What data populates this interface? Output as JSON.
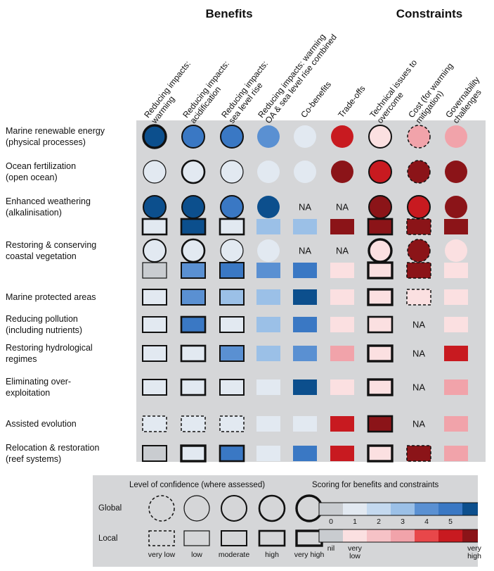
{
  "groups": {
    "benefits": "Benefits",
    "constraints": "Constraints"
  },
  "columns": [
    {
      "label": "Reducing impacts:\nwarming",
      "palette": "blue"
    },
    {
      "label": "Reducing impacts:\nacidification",
      "palette": "blue"
    },
    {
      "label": "Reducing impacts:\nsea level rise",
      "palette": "blue"
    },
    {
      "label": "Reducing impacts: warming\nOA & sea level rise combined",
      "palette": "blue"
    },
    {
      "label": "Co-benefits",
      "palette": "blue"
    },
    {
      "label": "Trade-offs",
      "palette": "red"
    },
    {
      "label": "Technical issues to\novercome",
      "palette": "red"
    },
    {
      "label": "Cost (for warming\nmitigation)",
      "palette": "red"
    },
    {
      "label": "Governability\nchallenges",
      "palette": "red"
    }
  ],
  "colors": {
    "blue": [
      "#c9ccd0",
      "#e2e9f1",
      "#c4d9ef",
      "#9bc0e7",
      "#5a90d2",
      "#3a78c4",
      "#0c4f8d"
    ],
    "red": [
      "#c9ccd0",
      "#fbe0e1",
      "#f6c2c6",
      "#f1a3aa",
      "#e8474a",
      "#c81a20",
      "#8b1418"
    ],
    "background": "#d5d6d8"
  },
  "legend": {
    "confidence_title": "Level of confidence (where assessed)",
    "scoring_title": "Scoring for benefits and constraints",
    "global_label": "Global",
    "local_label": "Local",
    "confidence_levels": [
      "very low",
      "low",
      "moderate",
      "high",
      "very high"
    ],
    "scale_numbers": [
      "0",
      "1",
      "2",
      "3",
      "4",
      "5"
    ],
    "scale_words": {
      "nil": "nil",
      "very_low": "very\nlow",
      "very_high": "very\nhigh"
    }
  },
  "chart_data": {
    "type": "table",
    "title": "",
    "groups": [
      {
        "name": "Benefits",
        "columns": [
          0,
          1,
          2,
          3,
          4
        ]
      },
      {
        "name": "Constraints",
        "columns": [
          5,
          6,
          7,
          8
        ]
      }
    ],
    "legend": {
      "score_range": [
        0,
        5
      ],
      "confidence_levels": [
        "very low",
        "low",
        "moderate",
        "high",
        "very high"
      ]
    },
    "rows": [
      {
        "label": "Marine renewable energy\n(physical processes)",
        "lines": [
          {
            "scope": "global",
            "cells": [
              {
                "score": 5,
                "conf": "very high"
              },
              {
                "score": 4,
                "conf": "moderate"
              },
              {
                "score": 4,
                "conf": "moderate"
              },
              {
                "score": 3
              },
              {
                "score": 1
              },
              {
                "score": 3.5
              },
              {
                "score": 1,
                "conf": "moderate"
              },
              {
                "score": 2,
                "conf": "very low"
              },
              {
                "score": 2
              }
            ]
          }
        ]
      },
      {
        "label": "Ocean fertilization\n(open ocean)",
        "lines": [
          {
            "scope": "global",
            "cells": [
              {
                "score": 1,
                "conf": "low"
              },
              {
                "score": 1,
                "conf": "high"
              },
              {
                "score": 1,
                "conf": "low"
              },
              {
                "score": 1
              },
              {
                "score": 1
              },
              {
                "score": 4.5
              },
              {
                "score": 3.5,
                "conf": "moderate"
              },
              {
                "score": 5,
                "conf": "very low"
              },
              {
                "score": 5
              }
            ]
          }
        ]
      },
      {
        "label": "Enhanced weathering\n(alkalinisation)",
        "lines": [
          {
            "scope": "global",
            "cells": [
              {
                "score": 5,
                "conf": "moderate"
              },
              {
                "score": 5,
                "conf": "moderate"
              },
              {
                "score": 4,
                "conf": "moderate"
              },
              {
                "score": 5
              },
              {
                "na": true
              },
              {
                "na": true
              },
              {
                "score": 4.5,
                "conf": "moderate"
              },
              {
                "score": 3.5,
                "conf": "moderate"
              },
              {
                "score": 5
              }
            ]
          },
          {
            "scope": "local",
            "cells": [
              {
                "score": 1,
                "conf": "high"
              },
              {
                "score": 5,
                "conf": "high"
              },
              {
                "score": 1,
                "conf": "high"
              },
              {
                "score": 2
              },
              {
                "score": 2
              },
              {
                "score": 4.5
              },
              {
                "score": 4.5,
                "conf": "high"
              },
              {
                "score": 4.5,
                "conf": "very low"
              },
              {
                "score": 5
              }
            ]
          }
        ]
      },
      {
        "label": "Restoring & conserving\ncoastal vegetation",
        "lines": [
          {
            "scope": "global",
            "cells": [
              {
                "score": 1,
                "conf": "moderate"
              },
              {
                "score": 1,
                "conf": "high"
              },
              {
                "score": 1,
                "conf": "low"
              },
              {
                "score": 1
              },
              {
                "na": true
              },
              {
                "na": true
              },
              {
                "score": 1,
                "conf": "very high"
              },
              {
                "score": 5,
                "conf": "very low"
              },
              {
                "score": 1
              }
            ]
          },
          {
            "scope": "local",
            "cells": [
              {
                "score": 0,
                "conf": "low"
              },
              {
                "score": 3,
                "conf": "moderate"
              },
              {
                "score": 4,
                "conf": "moderate"
              },
              {
                "score": 3
              },
              {
                "score": 4
              },
              {
                "score": 1
              },
              {
                "score": 1,
                "conf": "very high"
              },
              {
                "score": 5,
                "conf": "very low"
              },
              {
                "score": 1
              }
            ]
          }
        ]
      },
      {
        "label": "Marine protected areas",
        "lines": [
          {
            "scope": "local",
            "cells": [
              {
                "score": 1,
                "conf": "moderate"
              },
              {
                "score": 3,
                "conf": "moderate"
              },
              {
                "score": 2,
                "conf": "moderate"
              },
              {
                "score": 2
              },
              {
                "score": 5
              },
              {
                "score": 1
              },
              {
                "score": 1,
                "conf": "very high"
              },
              {
                "score": 1,
                "conf": "very low"
              },
              {
                "score": 1
              }
            ]
          }
        ]
      },
      {
        "label": "Reducing pollution\n(including nutrients)",
        "lines": [
          {
            "scope": "local",
            "cells": [
              {
                "score": 1,
                "conf": "moderate"
              },
              {
                "score": 4,
                "conf": "high"
              },
              {
                "score": 1,
                "conf": "moderate"
              },
              {
                "score": 2
              },
              {
                "score": 4
              },
              {
                "score": 1
              },
              {
                "score": 1,
                "conf": "high"
              },
              {
                "na": true
              },
              {
                "score": 1
              }
            ]
          }
        ]
      },
      {
        "label": "Restoring hydrological\nregimes",
        "lines": [
          {
            "scope": "local",
            "cells": [
              {
                "score": 1,
                "conf": "moderate"
              },
              {
                "score": 1,
                "conf": "high"
              },
              {
                "score": 3,
                "conf": "moderate"
              },
              {
                "score": 2
              },
              {
                "score": 3
              },
              {
                "score": 2
              },
              {
                "score": 1,
                "conf": "very high"
              },
              {
                "na": true
              },
              {
                "score": 4
              }
            ]
          }
        ]
      },
      {
        "label": "Eliminating over-\nexploitation",
        "lines": [
          {
            "scope": "local",
            "cells": [
              {
                "score": 1,
                "conf": "moderate"
              },
              {
                "score": 1,
                "conf": "high"
              },
              {
                "score": 1,
                "conf": "moderate"
              },
              {
                "score": 1
              },
              {
                "score": 5
              },
              {
                "score": 1
              },
              {
                "score": 1,
                "conf": "very high"
              },
              {
                "na": true
              },
              {
                "score": 2
              }
            ]
          }
        ]
      },
      {
        "label": "Assisted evolution",
        "lines": [
          {
            "scope": "local",
            "cells": [
              {
                "score": 1,
                "conf": "very low"
              },
              {
                "score": 1,
                "conf": "very low"
              },
              {
                "score": 1,
                "conf": "very low"
              },
              {
                "score": 1
              },
              {
                "score": 1
              },
              {
                "score": 4
              },
              {
                "score": 5,
                "conf": "high"
              },
              {
                "na": true
              },
              {
                "score": 2
              }
            ]
          }
        ]
      },
      {
        "label": "Relocation & restoration\n(reef systems)",
        "lines": [
          {
            "scope": "local",
            "cells": [
              {
                "score": 0,
                "conf": "moderate"
              },
              {
                "score": 1,
                "conf": "very high"
              },
              {
                "score": 4,
                "conf": "high"
              },
              {
                "score": 1
              },
              {
                "score": 4
              },
              {
                "score": 4
              },
              {
                "score": 1,
                "conf": "very high"
              },
              {
                "score": 5,
                "conf": "very low"
              },
              {
                "score": 2
              }
            ]
          }
        ]
      }
    ]
  }
}
